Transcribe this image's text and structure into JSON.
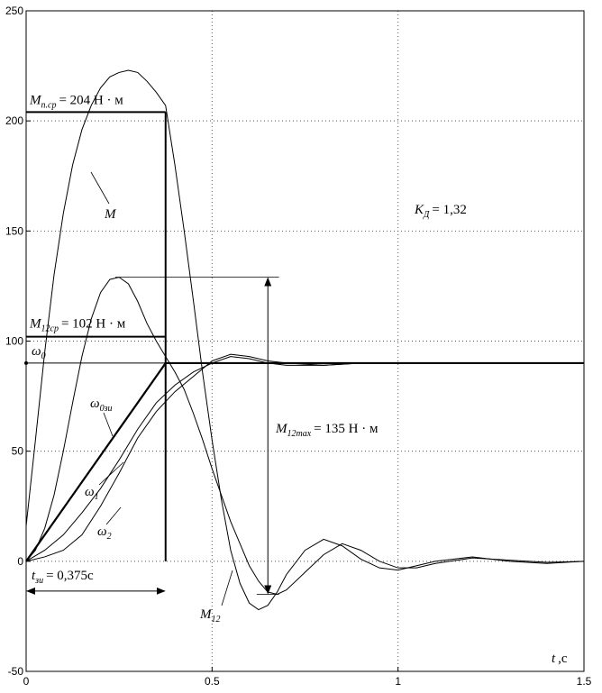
{
  "chart_data": {
    "type": "line",
    "xlim": [
      0,
      1.5
    ],
    "xticks": [
      0,
      0.5,
      1,
      1.5
    ],
    "ylim": [
      -50,
      250
    ],
    "yticks": [
      -50,
      0,
      50,
      100,
      150,
      200,
      250
    ],
    "grid": true,
    "x_label": {
      "symbol": "t",
      "text": ",c"
    },
    "series": [
      {
        "name": "M",
        "color": "#000000",
        "x": [
          0,
          0.025,
          0.05,
          0.075,
          0.1,
          0.125,
          0.15,
          0.175,
          0.2,
          0.225,
          0.25,
          0.275,
          0.3,
          0.325,
          0.35,
          0.375,
          0.4,
          0.425,
          0.45,
          0.475,
          0.5,
          0.525,
          0.55,
          0.575,
          0.6,
          0.625,
          0.65,
          0.675,
          0.7,
          0.75,
          0.8,
          0.85,
          0.9,
          0.95,
          1.0,
          1.05,
          1.1,
          1.2,
          1.3,
          1.4,
          1.5
        ],
        "values": [
          16,
          55,
          95,
          130,
          158,
          180,
          196,
          207,
          215,
          220,
          222,
          223,
          222,
          218,
          213,
          207,
          180,
          150,
          118,
          85,
          55,
          28,
          5,
          -10,
          -19,
          -22,
          -20,
          -14,
          -6,
          5,
          10,
          7,
          1,
          -3,
          -4,
          -2,
          0,
          2,
          0,
          -1,
          0
        ]
      },
      {
        "name": "M",
        "sub": "12",
        "color": "#000000",
        "x": [
          0,
          0.025,
          0.05,
          0.075,
          0.1,
          0.125,
          0.15,
          0.175,
          0.2,
          0.225,
          0.25,
          0.275,
          0.3,
          0.325,
          0.35,
          0.375,
          0.4,
          0.425,
          0.45,
          0.475,
          0.5,
          0.525,
          0.55,
          0.575,
          0.6,
          0.625,
          0.65,
          0.675,
          0.7,
          0.75,
          0.8,
          0.85,
          0.9,
          0.95,
          1.0,
          1.05,
          1.1,
          1.2,
          1.3,
          1.4,
          1.5
        ],
        "values": [
          0,
          5,
          15,
          30,
          50,
          72,
          93,
          110,
          122,
          128,
          129,
          126,
          118,
          108,
          100,
          93,
          86,
          78,
          67,
          55,
          42,
          30,
          18,
          8,
          -2,
          -9,
          -14,
          -15,
          -13,
          -5,
          3,
          8,
          5,
          0,
          -3,
          -3,
          -1,
          1.5,
          0.5,
          -0.5,
          0
        ]
      },
      {
        "name": "ω",
        "sub": "1",
        "color": "#000000",
        "x": [
          0,
          0.05,
          0.1,
          0.15,
          0.2,
          0.25,
          0.3,
          0.35,
          0.4,
          0.45,
          0.5,
          0.55,
          0.6,
          0.65,
          0.7,
          0.8,
          0.9,
          1.0
        ],
        "values": [
          0,
          5,
          12,
          22,
          33,
          46,
          60,
          72,
          80,
          86,
          90,
          93,
          92,
          90,
          89,
          89,
          90,
          90
        ]
      },
      {
        "name": "ω",
        "sub": "2",
        "color": "#000000",
        "x": [
          0,
          0.05,
          0.1,
          0.15,
          0.2,
          0.25,
          0.3,
          0.35,
          0.4,
          0.45,
          0.5,
          0.55,
          0.6,
          0.65,
          0.7,
          0.8,
          0.9,
          1.0
        ],
        "values": [
          0,
          2,
          5,
          12,
          25,
          40,
          56,
          68,
          77,
          84,
          91,
          94,
          93,
          91,
          90,
          89,
          90,
          90
        ]
      },
      {
        "name": "ω",
        "sub": "0зи",
        "color": "#000000",
        "thick": true,
        "x": [
          0,
          0.375,
          1.5
        ],
        "values": [
          0,
          90,
          90
        ]
      }
    ],
    "annotations": {
      "m_start_avg": {
        "symbol": "M",
        "sub": "п.ср",
        "text": "= 204 Н · м",
        "value": 204
      },
      "m12_avg": {
        "symbol": "M",
        "sub": "12ср",
        "text": "= 102 Н · м",
        "value": 102
      },
      "omega0": {
        "symbol": "ω",
        "sub": "0",
        "value": 90
      },
      "t_zi": {
        "symbol": "t",
        "sub": "зи",
        "text": "= 0,375с",
        "value": 0.375
      },
      "k_d": {
        "symbol": "K",
        "sub": "Д",
        "text": "= 1,32"
      },
      "m12_max": {
        "symbol": "M",
        "sub": "12max",
        "text": "= 135 Н · м"
      }
    }
  }
}
